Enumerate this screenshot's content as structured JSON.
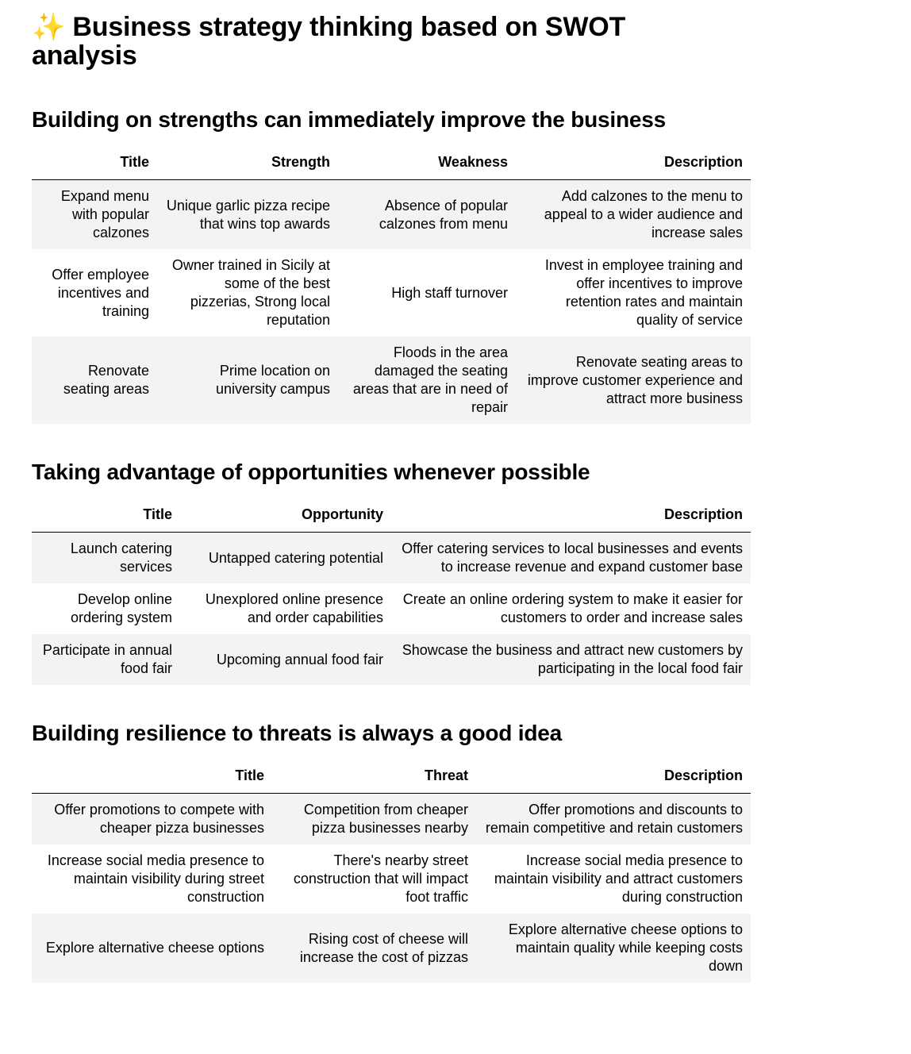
{
  "page": {
    "title_emoji": "✨",
    "title": "Business strategy thinking based on SWOT analysis"
  },
  "strengths": {
    "heading": "Building on strengths can immediately improve the business",
    "columns": [
      "Title",
      "Strength",
      "Weakness",
      "Description"
    ],
    "rows": [
      [
        "Expand menu with popular calzones",
        "Unique garlic pizza recipe that wins top awards",
        "Absence of popular calzones from menu",
        "Add calzones to the menu to appeal to a wider audience and increase sales"
      ],
      [
        "Offer employee incentives and training",
        "Owner trained in Sicily at some of the best pizzerias, Strong local reputation",
        "High staff turnover",
        "Invest in employee training and offer incentives to improve retention rates and maintain quality of service"
      ],
      [
        "Renovate seating areas",
        "Prime location on university campus",
        "Floods in the area damaged the seating areas that are in need of repair",
        "Renovate seating areas to improve customer experience and attract more business"
      ]
    ]
  },
  "opportunities": {
    "heading": "Taking advantage of opportunities whenever possible",
    "columns": [
      "Title",
      "Opportunity",
      "Description"
    ],
    "rows": [
      [
        "Launch catering services",
        "Untapped catering potential",
        "Offer catering services to local businesses and events to increase revenue and expand customer base"
      ],
      [
        "Develop online ordering system",
        "Unexplored online presence and order capabilities",
        "Create an online ordering system to make it easier for customers to order and increase sales"
      ],
      [
        "Participate in annual food fair",
        "Upcoming annual food fair",
        "Showcase the business and attract new customers by participating in the local food fair"
      ]
    ]
  },
  "threats": {
    "heading": "Building resilience to threats is always a good idea",
    "columns": [
      "Title",
      "Threat",
      "Description"
    ],
    "rows": [
      [
        "Offer promotions to compete with cheaper pizza businesses",
        "Competition from cheaper pizza businesses nearby",
        "Offer promotions and discounts to remain competitive and retain customers"
      ],
      [
        "Increase social media presence to maintain visibility during street construction",
        "There's nearby street construction that will impact foot traffic",
        "Increase social media presence to maintain visibility and attract customers during construction"
      ],
      [
        "Explore alternative cheese options",
        "Rising cost of cheese will increase the cost of pizzas",
        "Explore alternative cheese options to maintain quality while keeping costs down"
      ]
    ]
  }
}
